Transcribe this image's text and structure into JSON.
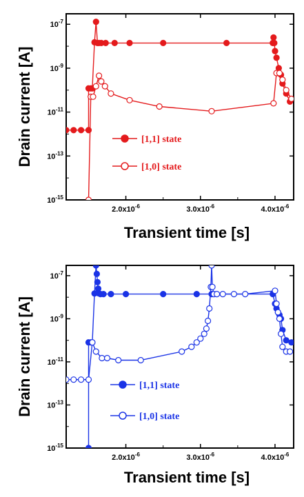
{
  "chart_data": [
    {
      "type": "line",
      "color": "#e41a1c",
      "xlabel": "Transient time [s]",
      "ylabel": "Drain current [A]",
      "ylog": true,
      "xlim": [
        1.2e-06,
        4.25e-06
      ],
      "ylim": [
        1e-15,
        3e-07
      ],
      "x_ticks": [
        {
          "value": 2e-06,
          "label": "2.0x10",
          "exp": "-6"
        },
        {
          "value": 3e-06,
          "label": "3.0x10",
          "exp": "-6"
        },
        {
          "value": 4e-06,
          "label": "4.0x10",
          "exp": "-6"
        }
      ],
      "y_ticks": [
        {
          "value": 1e-07,
          "label": "10",
          "exp": "-7"
        },
        {
          "value": 1e-09,
          "label": "10",
          "exp": "-9"
        },
        {
          "value": 1e-11,
          "label": "10",
          "exp": "-11"
        },
        {
          "value": 1e-13,
          "label": "10",
          "exp": "-13"
        },
        {
          "value": 1e-15,
          "label": "10",
          "exp": "-15"
        }
      ],
      "legend_position": "lower-middle",
      "series": [
        {
          "name": "[1,1] state",
          "marker": "filled-circle",
          "x": [
            1.2e-06,
            1.3e-06,
            1.4e-06,
            1.5e-06,
            1.5e-06,
            1.53e-06,
            1.55e-06,
            1.58e-06,
            1.6e-06,
            1.62e-06,
            1.64e-06,
            1.67e-06,
            1.73e-06,
            1.85e-06,
            2.05e-06,
            2.5e-06,
            3.35e-06,
            3.97e-06,
            3.98e-06,
            3.99e-06,
            4e-06,
            4.02e-06,
            4.05e-06,
            4.08e-06,
            4.1e-06,
            4.15e-06,
            4.2e-06
          ],
          "y": [
            1.5e-12,
            1.5e-12,
            1.5e-12,
            1.5e-12,
            1.2e-10,
            1.2e-10,
            1.2e-10,
            1.5e-08,
            1.3e-07,
            1.4e-08,
            1.4e-08,
            1.4e-08,
            1.4e-08,
            1.4e-08,
            1.4e-08,
            1.4e-08,
            1.4e-08,
            1.4e-08,
            2.5e-08,
            1.4e-08,
            6e-09,
            3e-09,
            1e-09,
            5e-10,
            2e-10,
            7e-11,
            3e-11
          ]
        },
        {
          "name": "[1,0] state",
          "marker": "open-circle",
          "x": [
            1.5e-06,
            1.53e-06,
            1.56e-06,
            1.6e-06,
            1.64e-06,
            1.67e-06,
            1.72e-06,
            1.8e-06,
            2.05e-06,
            2.45e-06,
            3.15e-06,
            3.98e-06,
            4.02e-06,
            4.06e-06,
            4.1e-06,
            4.15e-06,
            4.22e-06
          ],
          "y": [
            1e-15,
            5e-11,
            5e-11,
            1.5e-10,
            4.5e-10,
            2.5e-10,
            1.5e-10,
            7e-11,
            3.5e-11,
            1.8e-11,
            1.1e-11,
            2.5e-11,
            6e-10,
            6e-10,
            3e-10,
            1e-10,
            4e-11
          ]
        }
      ]
    },
    {
      "type": "line",
      "color": "#1a33e6",
      "xlabel": "Transient time [s]",
      "ylabel": "Drain current [A]",
      "ylog": true,
      "xlim": [
        1.2e-06,
        4.25e-06
      ],
      "ylim": [
        1e-15,
        3e-07
      ],
      "x_ticks": [
        {
          "value": 2e-06,
          "label": "2.0x10",
          "exp": "-6"
        },
        {
          "value": 3e-06,
          "label": "3.0x10",
          "exp": "-6"
        },
        {
          "value": 4e-06,
          "label": "4.0x10",
          "exp": "-6"
        }
      ],
      "y_ticks": [
        {
          "value": 1e-07,
          "label": "10",
          "exp": "-7"
        },
        {
          "value": 1e-09,
          "label": "10",
          "exp": "-9"
        },
        {
          "value": 1e-11,
          "label": "10",
          "exp": "-11"
        },
        {
          "value": 1e-13,
          "label": "10",
          "exp": "-13"
        },
        {
          "value": 1e-15,
          "label": "10",
          "exp": "-15"
        }
      ],
      "legend_position": "lower-middle",
      "series": [
        {
          "name": "[1,1] state",
          "marker": "filled-circle",
          "x": [
            1.5e-06,
            1.5e-06,
            1.53e-06,
            1.55e-06,
            1.58e-06,
            1.6e-06,
            1.61e-06,
            1.62e-06,
            1.63e-06,
            1.64e-06,
            1.66e-06,
            1.7e-06,
            1.8e-06,
            2e-06,
            2.5e-06,
            2.95e-06,
            3.15e-06,
            3.97e-06,
            4e-06,
            4.02e-06,
            4.04e-06,
            4.06e-06,
            4.08e-06,
            4.1e-06,
            4.15e-06,
            4.22e-06
          ],
          "y": [
            1e-15,
            8e-11,
            8e-11,
            8e-11,
            1.5e-08,
            3e-07,
            1.2e-07,
            5e-08,
            2.5e-08,
            1.5e-08,
            1.4e-08,
            1.4e-08,
            1.4e-08,
            1.4e-08,
            1.4e-08,
            1.4e-08,
            1.4e-08,
            1.4e-08,
            5e-09,
            3e-09,
            2e-09,
            1.5e-09,
            1e-09,
            3e-10,
            1e-10,
            8e-11
          ]
        },
        {
          "name": "[1,0] state",
          "marker": "open-circle",
          "x": [
            1.2e-06,
            1.3e-06,
            1.4e-06,
            1.5e-06,
            1.55e-06,
            1.6e-06,
            1.68e-06,
            1.75e-06,
            1.9e-06,
            2.2e-06,
            2.75e-06,
            2.88e-06,
            2.95e-06,
            3e-06,
            3.05e-06,
            3.08e-06,
            3.1e-06,
            3.12e-06,
            3.14e-06,
            3.15e-06,
            3.16e-06,
            3.18e-06,
            3.22e-06,
            3.3e-06,
            3.45e-06,
            3.6e-06,
            4e-06,
            4.02e-06,
            4.04e-06,
            4.06e-06,
            4.08e-06,
            4.1e-06,
            4.15e-06,
            4.2e-06
          ],
          "y": [
            1.5e-12,
            1.5e-12,
            1.5e-12,
            1.5e-12,
            8e-11,
            3e-11,
            1.5e-11,
            1.5e-11,
            1.2e-11,
            1.2e-11,
            3e-11,
            5e-11,
            8e-11,
            1.2e-10,
            2e-10,
            3.5e-10,
            8e-10,
            3e-09,
            3e-08,
            3e-07,
            3e-08,
            1.4e-08,
            1.4e-08,
            1.4e-08,
            1.4e-08,
            1.4e-08,
            2e-08,
            5e-09,
            2e-09,
            1e-09,
            2e-10,
            5e-11,
            3e-11,
            3e-11
          ]
        }
      ]
    }
  ]
}
